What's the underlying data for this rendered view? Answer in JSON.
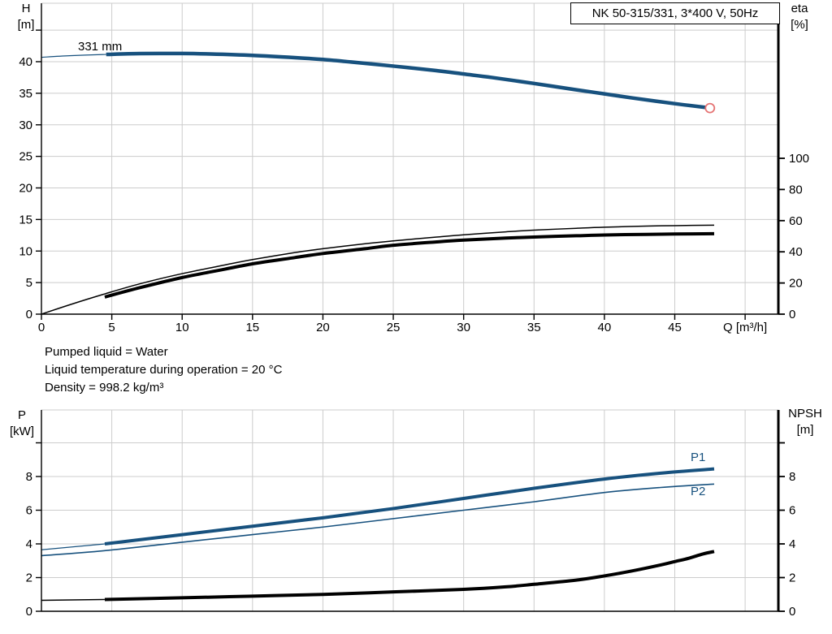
{
  "header": {
    "title": "NK 50-315/331, 3*400 V, 50Hz"
  },
  "info": {
    "lines": [
      "Pumped liquid = Water",
      "Liquid temperature during operation = 20 °C",
      "Density = 998.2 kg/m³"
    ]
  },
  "colors": {
    "curve_blue": "#17517E",
    "curve_black": "#000000",
    "duty_point_red": "#E57373",
    "grid": "#CCCCCC",
    "axis": "#000000"
  },
  "chart_data": [
    {
      "id": "chart-top",
      "type": "line",
      "title": "NK 50-315/331, 3*400 V, 50Hz",
      "x_axis": {
        "label": "Q [m³/h]",
        "range": [
          0,
          52.4
        ],
        "ticks": [
          0,
          5,
          10,
          15,
          20,
          25,
          30,
          35,
          40,
          45
        ],
        "unlabeled_ticks": [
          50
        ],
        "gridlines": [
          5,
          10,
          15,
          20,
          25,
          30,
          35,
          40,
          45,
          50
        ]
      },
      "left_axis": {
        "label": "H [m]",
        "label_lines": [
          "H",
          "[m]"
        ],
        "range": [
          0,
          49.3
        ],
        "ticks": [
          0,
          5,
          10,
          15,
          20,
          25,
          30,
          35,
          40
        ],
        "unlabeled_ticks": [
          45
        ],
        "gridlines": [
          5,
          10,
          15,
          20,
          25,
          30,
          35,
          40,
          45
        ]
      },
      "right_axis": {
        "label": "eta [%]",
        "label_lines": [
          "eta",
          "[%]"
        ],
        "range": [
          0,
          100
        ],
        "ticks": [
          0,
          20,
          40,
          60,
          80,
          100
        ],
        "unlabeled_ticks": [],
        "gridlines": []
      },
      "annotations": {
        "impeller": "331 mm"
      },
      "series": [
        {
          "name": "head-lead",
          "axis": "left",
          "color": "#17517E",
          "width": 1.2,
          "points": [
            [
              0,
              40.7
            ],
            [
              2,
              40.95
            ],
            [
              4.6,
              41.15
            ]
          ]
        },
        {
          "name": "head-331mm",
          "axis": "left",
          "color": "#17517E",
          "width": 4.5,
          "points": [
            [
              4.6,
              41.15
            ],
            [
              7,
              41.28
            ],
            [
              10,
              41.3
            ],
            [
              12,
              41.22
            ],
            [
              15,
              41.0
            ],
            [
              18,
              40.65
            ],
            [
              20,
              40.35
            ],
            [
              22,
              39.95
            ],
            [
              25,
              39.3
            ],
            [
              28,
              38.6
            ],
            [
              30,
              38.05
            ],
            [
              32,
              37.5
            ],
            [
              35,
              36.55
            ],
            [
              38,
              35.55
            ],
            [
              40,
              34.9
            ],
            [
              42,
              34.25
            ],
            [
              45,
              33.35
            ],
            [
              47.4,
              32.7
            ]
          ]
        },
        {
          "name": "eta-pump",
          "axis": "right",
          "color": "#000000",
          "width": 1.5,
          "points": [
            [
              0,
              0
            ],
            [
              2,
              6
            ],
            [
              4.5,
              13
            ],
            [
              7,
              19.5
            ],
            [
              10,
              26
            ],
            [
              13,
              31.5
            ],
            [
              15,
              35
            ],
            [
              18,
              39.5
            ],
            [
              20,
              42
            ],
            [
              23,
              45.2
            ],
            [
              25,
              47
            ],
            [
              28,
              49.4
            ],
            [
              30,
              50.9
            ],
            [
              33,
              52.8
            ],
            [
              35,
              53.9
            ],
            [
              38,
              55.1
            ],
            [
              40,
              55.8
            ],
            [
              43,
              56.5
            ],
            [
              45,
              56.8
            ],
            [
              47.8,
              57.1
            ]
          ]
        },
        {
          "name": "eta-pump-motor",
          "axis": "right",
          "color": "#000000",
          "width": 4,
          "points": [
            [
              4.5,
              11
            ],
            [
              7,
              17
            ],
            [
              10,
              23.5
            ],
            [
              13,
              28.8
            ],
            [
              15,
              32.3
            ],
            [
              18,
              36.3
            ],
            [
              20,
              38.9
            ],
            [
              23,
              42
            ],
            [
              25,
              44.2
            ],
            [
              28,
              46.3
            ],
            [
              30,
              47.5
            ],
            [
              33,
              48.8
            ],
            [
              35,
              49.5
            ],
            [
              38,
              50.3
            ],
            [
              40,
              50.8
            ],
            [
              43,
              51.2
            ],
            [
              45,
              51.4
            ],
            [
              47.8,
              51.6
            ]
          ]
        }
      ],
      "duty_point": {
        "x": 47.5,
        "value": 32.65,
        "axis": "left",
        "radius": 5.5,
        "color": "#E57373"
      }
    },
    {
      "id": "chart-bottom",
      "type": "line",
      "title": "",
      "x_axis": {
        "label": "",
        "range": [
          0,
          52.4
        ],
        "ticks": [],
        "unlabeled_ticks": [],
        "gridlines": [
          5,
          10,
          15,
          20,
          25,
          30,
          35,
          40,
          45,
          50
        ]
      },
      "left_axis": {
        "label": "P [kW]",
        "label_lines": [
          "P",
          "[kW]"
        ],
        "range": [
          0,
          11.95
        ],
        "ticks": [
          0,
          2,
          4,
          6,
          8
        ],
        "unlabeled_ticks": [
          10
        ],
        "gridlines": [
          2,
          4,
          6,
          8,
          10
        ]
      },
      "right_axis": {
        "label": "NPSH [m]",
        "label_lines": [
          "NPSH",
          "[m]"
        ],
        "range": [
          0,
          11.95
        ],
        "ticks": [
          0,
          2,
          4,
          6,
          8
        ],
        "unlabeled_ticks": [
          10
        ],
        "gridlines": []
      },
      "annotations": {
        "p1": "P1",
        "p2": "P2"
      },
      "series": [
        {
          "name": "p1-lead",
          "axis": "left",
          "color": "#17517E",
          "width": 1.2,
          "points": [
            [
              0,
              3.65
            ],
            [
              4.5,
              4.0
            ]
          ]
        },
        {
          "name": "p1",
          "axis": "left",
          "color": "#17517E",
          "width": 4,
          "points": [
            [
              4.5,
              4.0
            ],
            [
              10,
              4.55
            ],
            [
              15,
              5.05
            ],
            [
              20,
              5.55
            ],
            [
              25,
              6.1
            ],
            [
              30,
              6.7
            ],
            [
              35,
              7.3
            ],
            [
              40,
              7.85
            ],
            [
              44,
              8.2
            ],
            [
              47.8,
              8.45
            ]
          ]
        },
        {
          "name": "p2",
          "axis": "left",
          "color": "#17517E",
          "width": 1.6,
          "points": [
            [
              0,
              3.3
            ],
            [
              4.5,
              3.6
            ],
            [
              10,
              4.1
            ],
            [
              15,
              4.55
            ],
            [
              20,
              5.0
            ],
            [
              25,
              5.5
            ],
            [
              30,
              6.0
            ],
            [
              35,
              6.5
            ],
            [
              40,
              7.05
            ],
            [
              44,
              7.35
            ],
            [
              47.8,
              7.55
            ]
          ]
        },
        {
          "name": "npsh-lead",
          "axis": "right",
          "color": "#000000",
          "width": 1.5,
          "points": [
            [
              0,
              0.65
            ],
            [
              4.5,
              0.7
            ]
          ]
        },
        {
          "name": "npsh",
          "axis": "right",
          "color": "#000000",
          "width": 4,
          "points": [
            [
              4.5,
              0.7
            ],
            [
              10,
              0.8
            ],
            [
              15,
              0.9
            ],
            [
              20,
              1.0
            ],
            [
              25,
              1.15
            ],
            [
              30,
              1.3
            ],
            [
              33,
              1.45
            ],
            [
              35,
              1.6
            ],
            [
              38,
              1.85
            ],
            [
              40,
              2.1
            ],
            [
              42,
              2.4
            ],
            [
              44,
              2.75
            ],
            [
              45,
              2.95
            ],
            [
              46,
              3.15
            ],
            [
              47,
              3.4
            ],
            [
              47.8,
              3.55
            ]
          ]
        }
      ]
    }
  ]
}
